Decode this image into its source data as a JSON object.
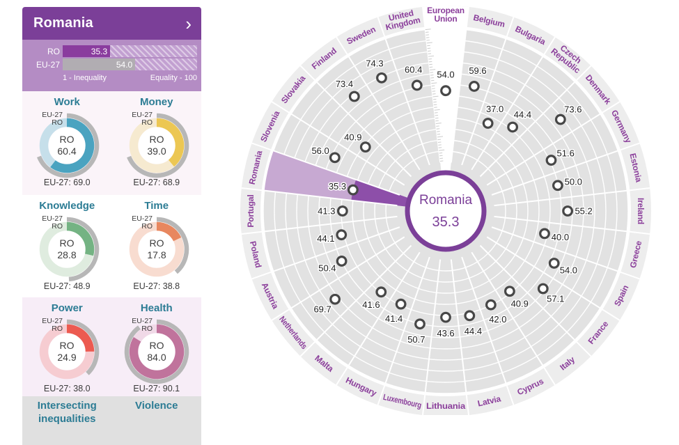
{
  "colors": {
    "accent_purple": "#7b3f98",
    "panel_purple": "#b48cc4",
    "ro_bar": "#8a3c9e",
    "eu_bar": "#b1adb2",
    "highlight_light": "#c7a9d2",
    "highlight_dark": "#8d4fa9",
    "ring_bg": "#e2e2e2",
    "band_bg": "#ededed",
    "country_label": "#8b3f9b",
    "domain_title": "#2c7c94",
    "gauge_eu_arc": "#b7b7b7"
  },
  "sidebar": {
    "title": "Romania",
    "chevron": "›",
    "mini_labels": {
      "eu": "EU-27",
      "ro": "RO"
    },
    "score_bars": {
      "rows": [
        {
          "label": "RO",
          "value": "35.3",
          "pct": 35.3,
          "color": "#8a3c9e"
        },
        {
          "label": "EU-27",
          "value": "54.0",
          "pct": 54.0,
          "color": "#b1adb2"
        }
      ],
      "scale_left": "1 - Inequality",
      "scale_right": "Equality - 100"
    },
    "domains": [
      {
        "title": "Work",
        "center_label": "RO",
        "value": "60.4",
        "ro": 60.4,
        "eu": 69.0,
        "caption": "EU-27: 69.0",
        "color": "#4aa3c0",
        "light": "#c6dfea"
      },
      {
        "title": "Money",
        "center_label": "RO",
        "value": "39.0",
        "ro": 39.0,
        "eu": 68.9,
        "caption": "EU-27: 68.9",
        "color": "#ecc753",
        "light": "#f6ead0"
      },
      {
        "title": "Knowledge",
        "center_label": "RO",
        "value": "28.8",
        "ro": 28.8,
        "eu": 48.9,
        "caption": "EU-27: 48.9",
        "color": "#74b383",
        "light": "#dfecdf"
      },
      {
        "title": "Time",
        "center_label": "RO",
        "value": "17.8",
        "ro": 17.8,
        "eu": 38.8,
        "caption": "EU-27: 38.8",
        "color": "#e8875f",
        "light": "#f8dcd0"
      },
      {
        "title": "Power",
        "center_label": "RO",
        "value": "24.9",
        "ro": 24.9,
        "eu": 38.0,
        "caption": "EU-27: 38.0",
        "color": "#ec5a50",
        "light": "#f6ccd1"
      },
      {
        "title": "Health",
        "center_label": "RO",
        "value": "84.0",
        "ro": 84.0,
        "eu": 90.1,
        "caption": "EU-27: 90.1",
        "color": "#c0739c",
        "light": "#f0d9e7"
      }
    ],
    "footer": [
      "Intersecting inequalities",
      "Violence"
    ]
  },
  "chart_data": {
    "type": "radial-scatter",
    "direction": "clockwise",
    "start": "top",
    "center": {
      "label": "Romania",
      "value": "35.3"
    },
    "scale": {
      "min": 1,
      "max": 100
    },
    "highlight": "Romania",
    "sectors": [
      {
        "name": "European Union",
        "value": 54.0,
        "style": "white"
      },
      {
        "name": "Belgium",
        "value": 59.6
      },
      {
        "name": "Bulgaria",
        "value": 37.0
      },
      {
        "name": "Czech Republic",
        "value": 44.4
      },
      {
        "name": "Denmark",
        "value": 73.6
      },
      {
        "name": "Germany",
        "value": 51.6
      },
      {
        "name": "Estonia",
        "value": 50.0
      },
      {
        "name": "Ireland",
        "value": 55.2
      },
      {
        "name": "Greece",
        "value": 40.0
      },
      {
        "name": "Spain",
        "value": 54.0
      },
      {
        "name": "France",
        "value": 57.1
      },
      {
        "name": "Italy",
        "value": 40.9
      },
      {
        "name": "Cyprus",
        "value": 42.0
      },
      {
        "name": "Latvia",
        "value": 44.4
      },
      {
        "name": "Lithuania",
        "value": 43.6
      },
      {
        "name": "Luxembourg",
        "value": 50.7
      },
      {
        "name": "Hungary",
        "value": 41.4
      },
      {
        "name": "Malta",
        "value": 41.6
      },
      {
        "name": "Netherlands",
        "value": 69.7
      },
      {
        "name": "Austria",
        "value": 50.4
      },
      {
        "name": "Poland",
        "value": 44.1
      },
      {
        "name": "Portugal",
        "value": 41.3
      },
      {
        "name": "Romania",
        "value": 35.3,
        "highlight": true
      },
      {
        "name": "Slovenia",
        "value": 56.0
      },
      {
        "name": "Slovakia",
        "value": 40.9
      },
      {
        "name": "Finland",
        "value": 73.4
      },
      {
        "name": "Sweden",
        "value": 74.3
      },
      {
        "name": "United Kingdom",
        "value": 60.4
      }
    ]
  }
}
